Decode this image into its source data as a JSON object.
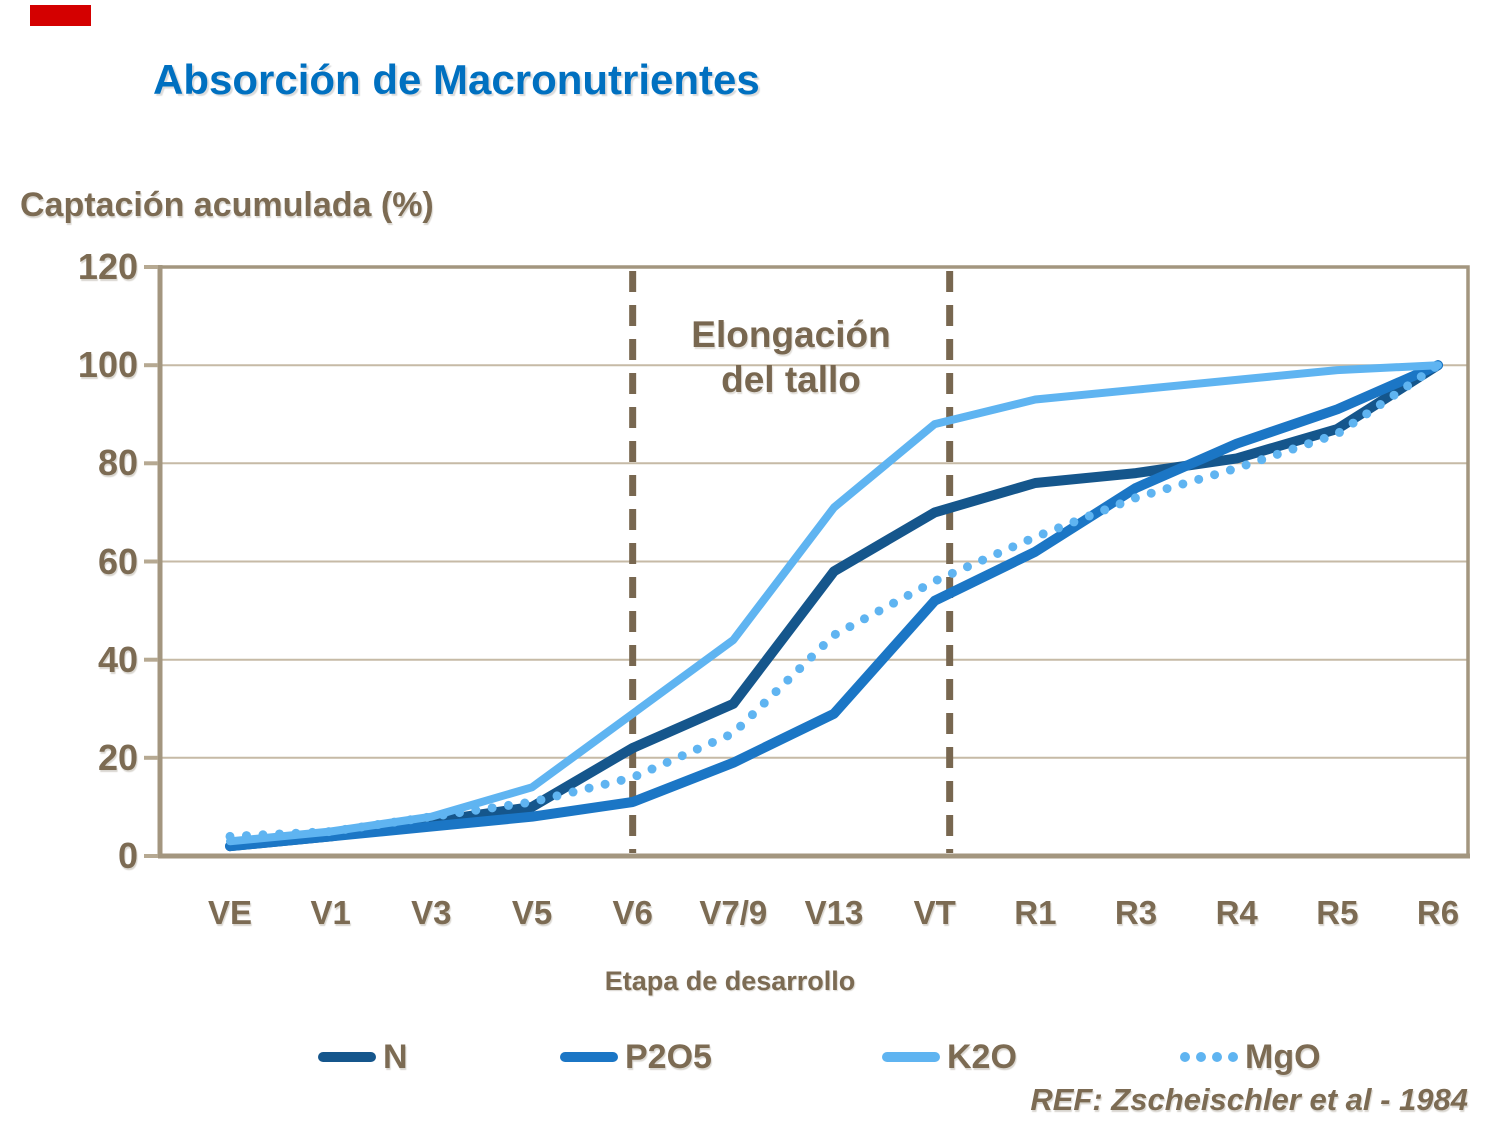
{
  "slide": {
    "title": "Absorción de Macronutrientes",
    "reference": "REF: Zscheischler et al - 1984"
  },
  "palette": {
    "title_blue": "#0070C0",
    "text_brown": "#7C6B53",
    "line_brown": "#786750",
    "axis_tan": "#A3967F",
    "grid_tan": "#C6BAA6",
    "tick_tan": "#B6A992",
    "accent_red": "#D40000"
  },
  "chart_data": {
    "type": "line",
    "title": "",
    "ylabel": "Captación acumulada (%)",
    "xlabel": "Etapa de desarrollo",
    "ylim": [
      0,
      120
    ],
    "yticks": [
      0,
      20,
      40,
      60,
      80,
      100,
      120
    ],
    "grid": true,
    "legend_position": "bottom",
    "categories": [
      "VE",
      "V1",
      "V3",
      "V5",
      "V6",
      "V7/9",
      "V13",
      "VT",
      "R1",
      "R3",
      "R4",
      "R5",
      "R6"
    ],
    "series": [
      {
        "name": "N",
        "style": "solid",
        "color": "#15568C",
        "width": 10,
        "values": [
          2,
          4,
          7,
          10,
          22,
          31,
          58,
          70,
          76,
          78,
          81,
          87,
          100
        ]
      },
      {
        "name": "P2O5",
        "style": "solid",
        "color": "#1B76C5",
        "width": 10,
        "values": [
          2,
          4,
          6,
          8,
          11,
          19,
          29,
          52,
          62,
          75,
          84,
          91,
          100
        ]
      },
      {
        "name": "K2O",
        "style": "solid",
        "color": "#5FB4F1",
        "width": 8,
        "values": [
          3,
          5,
          8,
          14,
          29,
          44,
          71,
          88,
          93,
          95,
          97,
          99,
          100
        ]
      },
      {
        "name": "MgO",
        "style": "dotted",
        "color": "#5FB4F1",
        "width": 9,
        "values": [
          4,
          5,
          8,
          11,
          16,
          25,
          45,
          56,
          65,
          73,
          79,
          86,
          100
        ]
      }
    ],
    "annotation": {
      "lines": [
        "Elongación",
        "del tallo"
      ],
      "between_categories": [
        "V6",
        "VT"
      ]
    },
    "dashed_marker_categories": [
      "V6",
      "VT"
    ]
  }
}
